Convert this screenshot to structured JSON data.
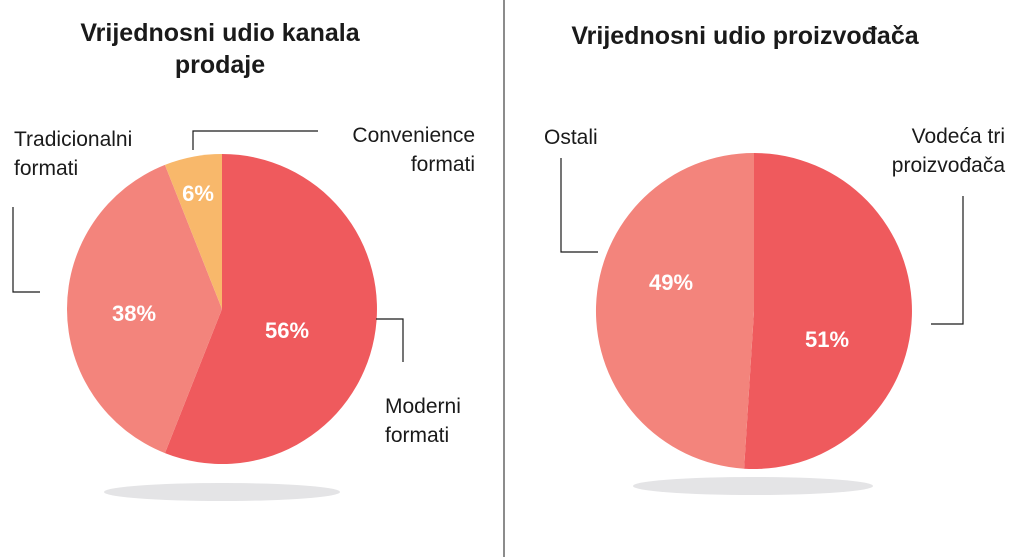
{
  "colors": {
    "slice_main": "#ef5a5d",
    "slice_secondary": "#f3847c",
    "slice_accent": "#f8b86b",
    "shadow": "#e4e4e6",
    "divider": "#8c8c8c",
    "callout_line": "#1a1a1a",
    "value_text": "#ffffff"
  },
  "chart_data": [
    {
      "type": "pie",
      "title_lines": [
        "Vrijednosni udio kanala",
        "prodaje"
      ],
      "slices": [
        {
          "label_lines": [
            "Moderni",
            "formati"
          ],
          "value": 56,
          "display": "56%",
          "color": "#ef5a5d"
        },
        {
          "label_lines": [
            "Tradicionalni",
            "formati"
          ],
          "value": 38,
          "display": "38%",
          "color": "#f3847c"
        },
        {
          "label_lines": [
            "Convenience",
            "formati"
          ],
          "value": 6,
          "display": "6%",
          "color": "#f8b86b"
        }
      ]
    },
    {
      "type": "pie",
      "title_lines": [
        "Vrijednosni udio proizvođača"
      ],
      "slices": [
        {
          "label_lines": [
            "Vodeća tri",
            "proizvođača"
          ],
          "value": 51,
          "display": "51%",
          "color": "#ef5a5d"
        },
        {
          "label_lines": [
            "Ostali"
          ],
          "value": 49,
          "display": "49%",
          "color": "#f3847c"
        }
      ]
    }
  ]
}
